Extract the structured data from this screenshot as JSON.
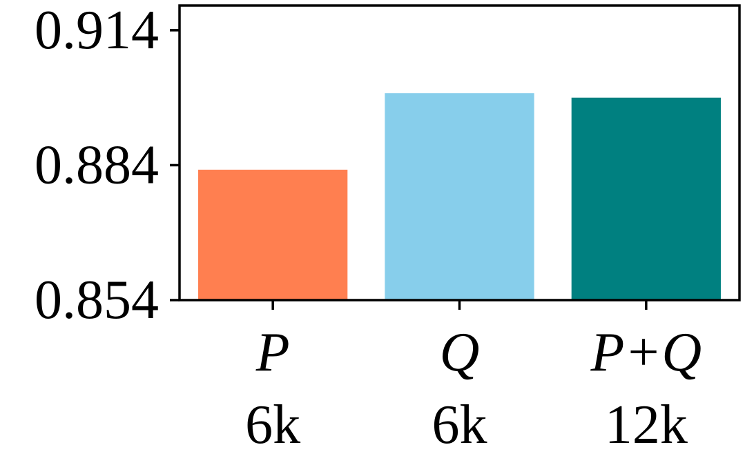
{
  "chart_data": {
    "type": "bar",
    "categories": [
      "P",
      "Q",
      "P+Q"
    ],
    "category_sublabels": [
      "6k",
      "6k",
      "12k"
    ],
    "values": [
      0.883,
      0.9,
      0.899
    ],
    "colors": [
      "#ff7f50",
      "#87ceeb",
      "#008080"
    ],
    "ylim": [
      0.854,
      0.9195
    ],
    "yticks": [
      0.854,
      0.884,
      0.914
    ],
    "ytick_labels": [
      "0.854",
      "0.884",
      "0.914"
    ],
    "title": "",
    "xlabel": "",
    "ylabel": "",
    "grid": false
  }
}
